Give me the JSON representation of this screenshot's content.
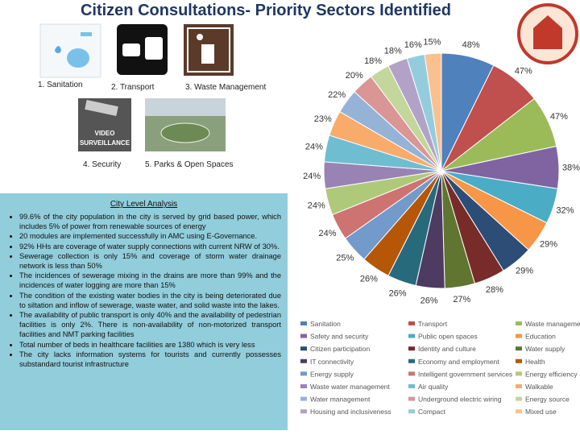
{
  "header": {
    "title": "Citizen Consultations- Priority Sectors Identified"
  },
  "sectors": [
    "1. Sanitation",
    "2. Transport",
    "3. Waste Management",
    "4. Security",
    "5. Parks & Open Spaces"
  ],
  "analysis": {
    "heading": "City Level Analysis",
    "bullets": [
      "99.6% of the city population in the city is served by grid based power, which includes 5% of power from renewable sources of energy",
      "20 modules are implemented successfully in AMC using E-Governance.",
      "92% HHs are coverage of water supply connections with current NRW of 30%.",
      "Sewerage collection is only 15% and coverage of storm water drainage network is less than 50%",
      "The incidences of sewerage mixing in the drains are more than 99% and the incidences of water logging are more than 15%",
      "The condition of the existing water bodies in the city is being deteriorated due to siltation and inflow of sewerage, waste water, and solid waste into the lakes.",
      "The availability of public transport is only 40% and the availability of pedestrian facilities is only 2%. There is non-availability of non-motorized transport facilities and NMT parking facilities",
      "Total number of beds in healthcare facilities are 1380 which is very less",
      "The city lacks information systems for tourists and currently possesses substandard tourist infrastructure"
    ]
  },
  "chart_data": {
    "type": "pie",
    "categories": [
      "Sanitation",
      "Transport",
      "Waste management",
      "Safety and security",
      "Public open spaces",
      "Education",
      "Citizen participation",
      "Identity and culture",
      "Water supply",
      "IT connectivity",
      "Economy and employment",
      "Health",
      "Energy supply",
      "Intelligent government services",
      "Energy efficiency",
      "Waste water management",
      "Air quality",
      "Walkable",
      "Water management",
      "Underground electric wiring",
      "Energy source",
      "Housing and inclusiveness",
      "Compact",
      "Mixed use"
    ],
    "values": [
      48,
      47,
      47,
      38,
      32,
      29,
      29,
      28,
      27,
      26,
      26,
      26,
      25,
      24,
      24,
      24,
      24,
      23,
      22,
      20,
      18,
      18,
      16,
      15
    ],
    "value_labels": [
      "48%",
      "47%",
      "47%",
      "38%",
      "32%",
      "29%",
      "29%",
      "28%",
      "27%",
      "26%",
      "26%",
      "26%",
      "25%",
      "24%",
      "24%",
      "24%",
      "24%",
      "23%",
      "22%",
      "20%",
      "18%",
      "18%",
      "16%",
      "15%"
    ],
    "colors": [
      "#4f81bd",
      "#c0504d",
      "#9bbb59",
      "#8064a2",
      "#4bacc6",
      "#f79646",
      "#2c4d75",
      "#772c2a",
      "#5f7530",
      "#4d3b62",
      "#276a7c",
      "#b65708",
      "#729aca",
      "#cd7371",
      "#afc97a",
      "#9983b5",
      "#6fbdd1",
      "#f9ab6b",
      "#95b3d7",
      "#d99694",
      "#c3d69b",
      "#b3a2c7",
      "#93cddd",
      "#fac090"
    ],
    "legend": "bottom"
  }
}
